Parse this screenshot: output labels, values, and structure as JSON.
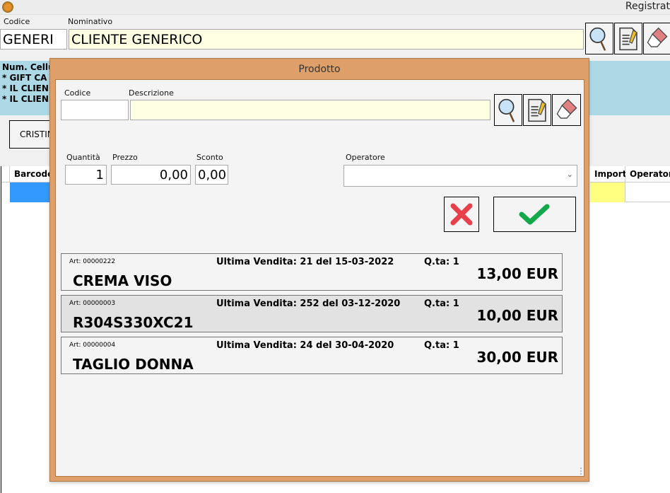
{
  "window": {
    "title": "Registrat"
  },
  "customer": {
    "codice_label": "Codice",
    "nominativo_label": "Nominativo",
    "codice_value": "GENERI",
    "nominativo_value": "CLIENTE GENERICO"
  },
  "info": {
    "lines": [
      "Num. Cellu",
      "* GIFT CA",
      "* IL CLIEN",
      "* IL CLIEN"
    ]
  },
  "operator_button": "CRISTIN",
  "grid": {
    "columns": [
      "Barcode",
      "Importo",
      "Operatore"
    ]
  },
  "dialog": {
    "title": "Prodotto",
    "codice_label": "Codice",
    "descrizione_label": "Descrizione",
    "codice_value": "",
    "descrizione_value": "",
    "quantita_label": "Quantità",
    "prezzo_label": "Prezzo",
    "sconto_label": "Sconto",
    "operatore_label": "Operatore",
    "quantita_value": "1",
    "prezzo_value": "0,00",
    "sconto_value": "0,00",
    "operatore_value": "",
    "items": [
      {
        "art": "Art: 00000222",
        "ultima": "Ultima Vendita: 21 del 15-03-2022",
        "qta": "Q.ta: 1",
        "name": "CREMA VISO",
        "price": "13,00 EUR"
      },
      {
        "art": "Art: 00000003",
        "ultima": "Ultima Vendita: 252 del 03-12-2020",
        "qta": "Q.ta: 1",
        "name": "R304S330XC21",
        "price": "10,00 EUR"
      },
      {
        "art": "Art: 00000004",
        "ultima": "Ultima Vendita: 24 del 30-04-2020",
        "qta": "Q.ta: 1",
        "name": "TAGLIO DONNA",
        "price": "30,00 EUR"
      }
    ]
  },
  "colors": {
    "dialog_border": "#dea068",
    "info_panel": "#add8e6",
    "selected_cell": "#3399ff",
    "importo_cell": "#ffff80",
    "cancel": "#e8404a",
    "confirm": "#13a84a"
  }
}
